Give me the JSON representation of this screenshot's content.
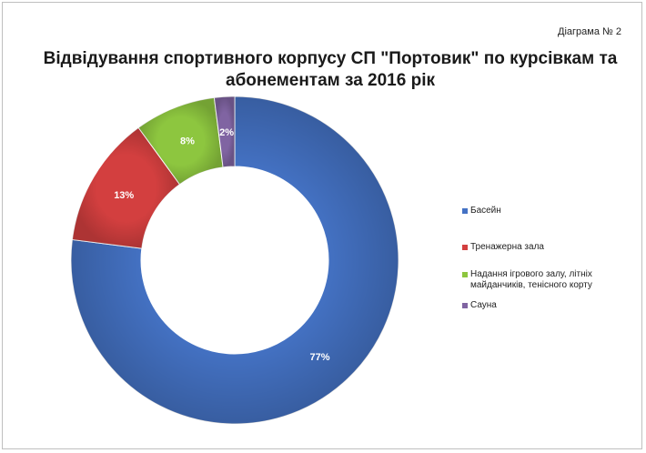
{
  "header": {
    "diagram_label": "Діаграма № 2"
  },
  "chart_data": {
    "type": "pie",
    "donut": true,
    "title": "Відвідування спортивного корпусу СП \"Портовик\" по курсівкам та абонементам за 2016 рік",
    "slices": [
      {
        "name": "Басейн",
        "value": 77,
        "label": "77%",
        "color": "#4472C4"
      },
      {
        "name": "Тренажерна зала",
        "value": 13,
        "label": "13%",
        "color": "#D33F3F"
      },
      {
        "name": "Надання ігрового залу, літніх майданчиків, тенісного корту",
        "value": 8,
        "label": "8%",
        "color": "#8DC63F"
      },
      {
        "name": "Сауна",
        "value": 2,
        "label": "2%",
        "color": "#8064A2"
      }
    ],
    "legend_position": "right",
    "start_angle": "12 o'clock",
    "direction": "clockwise"
  }
}
